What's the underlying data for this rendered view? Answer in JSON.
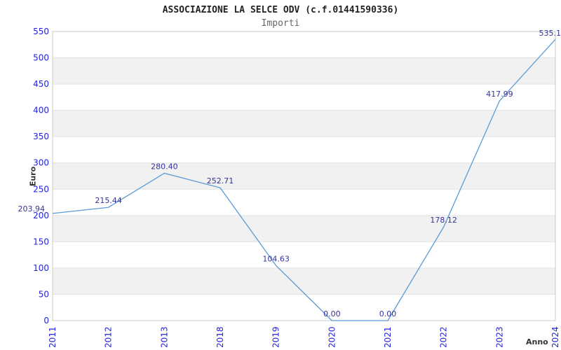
{
  "header": {
    "title": "ASSOCIAZIONE LA SELCE ODV (c.f.01441590336)",
    "subtitle": "Importi"
  },
  "chart_data": {
    "type": "line",
    "title": "ASSOCIAZIONE LA SELCE ODV (c.f.01441590336)",
    "subtitle": "Importi",
    "xlabel": "Anno",
    "ylabel": "Euro",
    "categories": [
      "2011",
      "2012",
      "2013",
      "2018",
      "2019",
      "2020",
      "2021",
      "2022",
      "2023",
      "2024"
    ],
    "series": [
      {
        "name": "Importi",
        "values": [
          203.94,
          215.44,
          280.4,
          252.71,
          104.63,
          0.0,
          0.0,
          178.12,
          417.99,
          535.1
        ],
        "point_labels": [
          "203.94",
          "215.44",
          "280.40",
          "252.71",
          "104.63",
          "0.00",
          "0.00",
          "178.12",
          "417.99",
          "535.1"
        ]
      }
    ],
    "ylim": [
      0,
      550
    ],
    "ytick_step": 50,
    "grid": "alternating-horizontal-bands",
    "legend_position": "none",
    "colors": {
      "line": "#5b9bd5",
      "tick_label": "#2222dd",
      "point_label": "#333399",
      "band_fill": "#f1f1f1",
      "gridline": "#e2e2e2",
      "plot_border": "#c9c9c9",
      "title": "#222222",
      "subtitle": "#666666",
      "axis_label": "#333333"
    }
  }
}
